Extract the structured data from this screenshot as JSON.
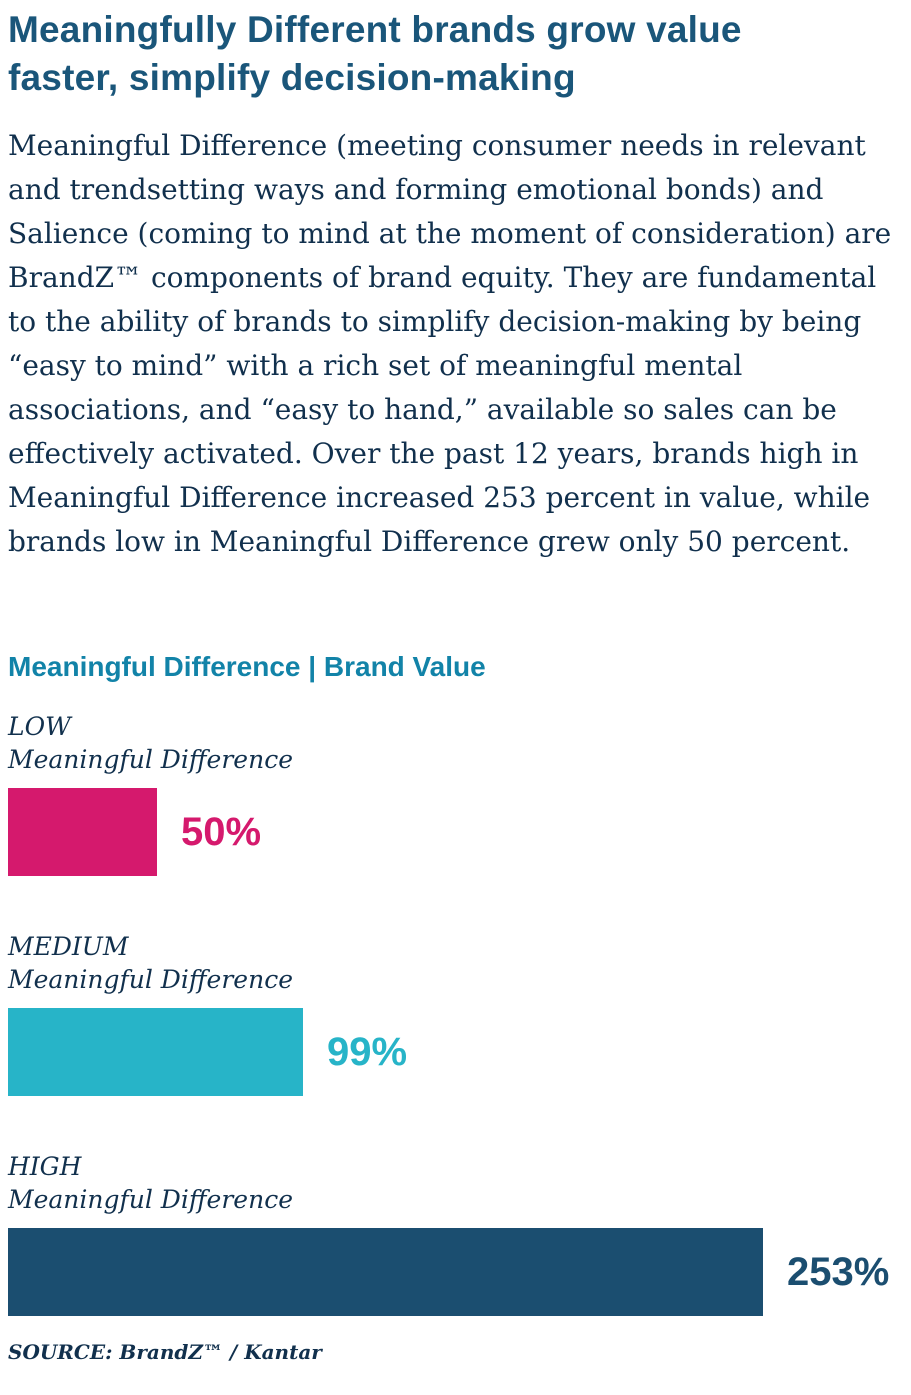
{
  "page": {
    "title": "Meaningfully Different brands grow value faster, simplify decision-making",
    "body_paragraph": "Meaningful Difference (meeting consumer needs in relevant and trendsetting ways and forming emotional bonds) and Salience (coming to mind at the moment of consideration) are BrandZ™ components of brand equity. They are fundamental to the ability of brands to simplify decision-making by being “easy to mind” with a rich set of meaningful mental associations, and “easy to hand,” available so sales can be effectively activated. Over the past 12 years, brands high in Meaningful Difference increased 253 percent in value, while brands low in Meaningful Difference grew only 50 percent.",
    "source": "SOURCE: BrandZ™ / Kantar"
  },
  "colors": {
    "headline": "#1a567a",
    "body_text": "#11304d",
    "chart_title": "#1283a8",
    "bar_low": "#d5196d",
    "bar_medium": "#27b4c8",
    "bar_high": "#1b4e70"
  },
  "chart_data": {
    "type": "bar",
    "orientation": "horizontal",
    "title": "Meaningful Difference | Brand Value",
    "categories": [
      "LOW Meaningful Difference",
      "MEDIUM Meaningful Difference",
      "HIGH Meaningful Difference"
    ],
    "values": [
      50,
      99,
      253
    ],
    "value_labels": [
      "50%",
      "99%",
      "253%"
    ],
    "xlabel": "",
    "ylabel": "",
    "xlim": [
      0,
      253
    ],
    "grid": false,
    "axes_shown": false,
    "legend": "none",
    "data_labels_position": "right-of-bar",
    "bars": [
      {
        "level": "LOW",
        "sublabel": "Meaningful Difference",
        "value": 50,
        "label": "50%",
        "color": "#d5196d"
      },
      {
        "level": "MEDIUM",
        "sublabel": "Meaningful Difference",
        "value": 99,
        "label": "99%",
        "color": "#27b4c8"
      },
      {
        "level": "HIGH",
        "sublabel": "Meaningful Difference",
        "value": 253,
        "label": "253%",
        "color": "#1b4e70"
      }
    ]
  }
}
